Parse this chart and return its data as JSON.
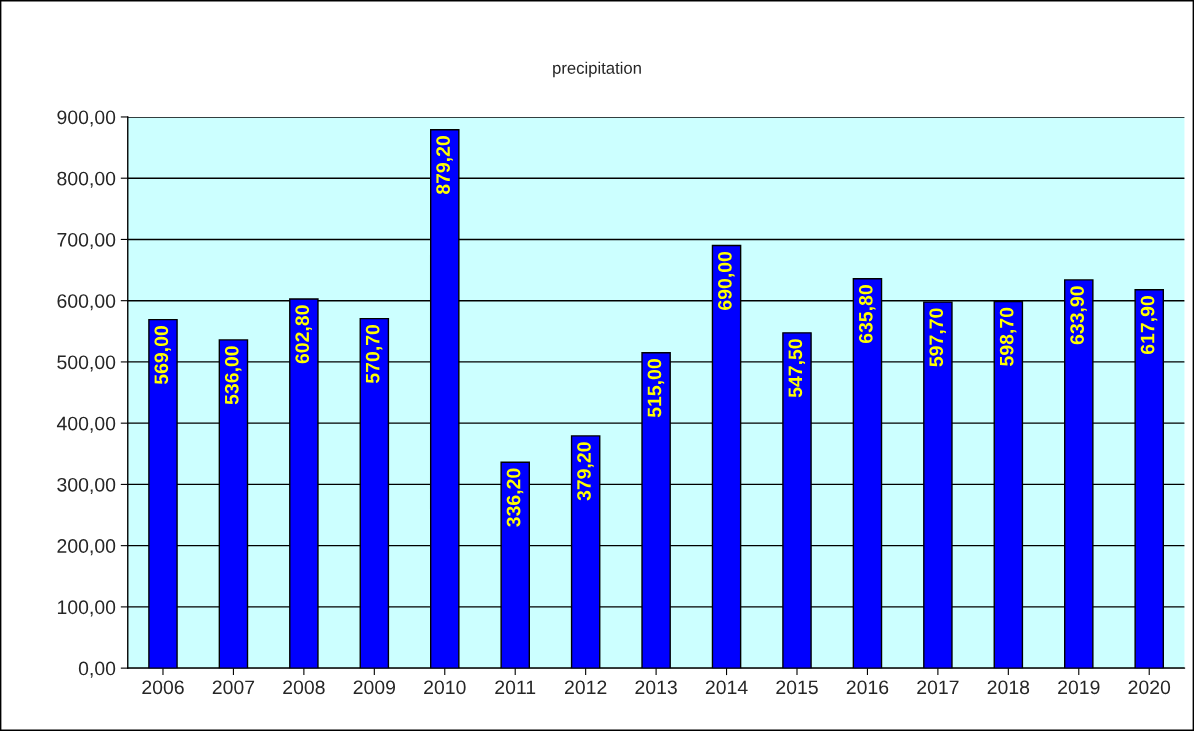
{
  "chart_data": {
    "type": "bar",
    "title": "precipitation",
    "categories": [
      "2006",
      "2007",
      "2008",
      "2009",
      "2010",
      "2011",
      "2012",
      "2013",
      "2014",
      "2015",
      "2016",
      "2017",
      "2018",
      "2019",
      "2020"
    ],
    "values": [
      569.0,
      536.0,
      602.8,
      570.7,
      879.2,
      336.2,
      379.2,
      515.0,
      690.0,
      547.5,
      635.8,
      597.7,
      598.7,
      633.9,
      617.9
    ],
    "value_labels": [
      "569,00",
      "536,00",
      "602,80",
      "570,70",
      "879,20",
      "336,20",
      "379,20",
      "515,00",
      "690,00",
      "547,50",
      "635,80",
      "597,70",
      "598,70",
      "633,90",
      "617,90"
    ],
    "color": "#0000ff",
    "ylim": [
      0,
      900
    ],
    "yticks": [
      {
        "value": 0,
        "label": "0,00"
      },
      {
        "value": 100,
        "label": "100,00"
      },
      {
        "value": 200,
        "label": "200,00"
      },
      {
        "value": 300,
        "label": "300,00"
      },
      {
        "value": 400,
        "label": "400,00"
      },
      {
        "value": 500,
        "label": "500,00"
      },
      {
        "value": 600,
        "label": "600,00"
      },
      {
        "value": 700,
        "label": "700,00"
      },
      {
        "value": 800,
        "label": "800,00"
      },
      {
        "value": 900,
        "label": "900,00"
      }
    ],
    "grid": "y"
  }
}
